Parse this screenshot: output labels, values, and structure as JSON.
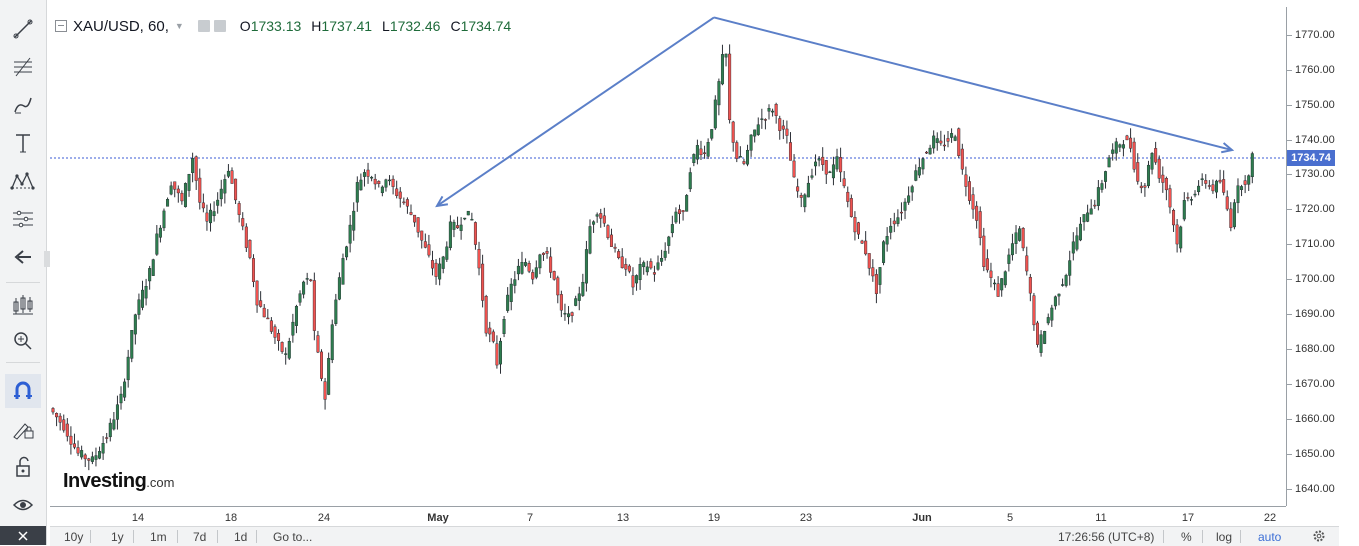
{
  "header": {
    "symbol": "XAU/USD, 60,",
    "open_label": "O",
    "open": "1733.13",
    "high_label": "H",
    "high": "1737.41",
    "low_label": "L",
    "low": "1732.46",
    "close_label": "C",
    "close": "1734.74"
  },
  "toolbar": {
    "items": [
      "trendline-tool",
      "fib-tool",
      "brush-tool",
      "text-tool",
      "pattern-tool",
      "measure-tool",
      "back-arrow",
      "indicators-tool",
      "zoom-tool",
      "magnet-tool",
      "lock-draw-tool",
      "unlock-tool",
      "eye-tool",
      "trash-tool"
    ]
  },
  "chart_data": {
    "type": "candlestick",
    "title": "XAU/USD, 60,",
    "ylim": [
      1635,
      1778
    ],
    "yticks": [
      "1770.00",
      "1760.00",
      "1750.00",
      "1740.00",
      "1730.00",
      "1720.00",
      "1710.00",
      "1700.00",
      "1690.00",
      "1680.00",
      "1670.00",
      "1660.00",
      "1650.00",
      "1640.00"
    ],
    "ytick_values": [
      1770,
      1760,
      1750,
      1740,
      1730,
      1720,
      1710,
      1700,
      1690,
      1680,
      1670,
      1660,
      1650,
      1640
    ],
    "xticks": [
      "14",
      "18",
      "24",
      "May",
      "7",
      "13",
      "19",
      "23",
      "Jun",
      "5",
      "11",
      "17",
      "22"
    ],
    "current_price": "1734.74",
    "current_price_value": 1734.74,
    "price_path": [
      [
        0,
        1663
      ],
      [
        4,
        1658
      ],
      [
        8,
        1650
      ],
      [
        12,
        1648
      ],
      [
        16,
        1655
      ],
      [
        20,
        1666
      ],
      [
        24,
        1690
      ],
      [
        28,
        1702
      ],
      [
        30,
        1712
      ],
      [
        34,
        1728
      ],
      [
        37,
        1722
      ],
      [
        40,
        1735
      ],
      [
        42,
        1722
      ],
      [
        44,
        1716
      ],
      [
        47,
        1723
      ],
      [
        50,
        1732
      ],
      [
        53,
        1718
      ],
      [
        56,
        1706
      ],
      [
        58,
        1694
      ],
      [
        61,
        1688
      ],
      [
        64,
        1681
      ],
      [
        66,
        1678
      ],
      [
        69,
        1692
      ],
      [
        71,
        1699
      ],
      [
        73,
        1700
      ],
      [
        74,
        1684
      ],
      [
        76,
        1672
      ],
      [
        77,
        1666
      ],
      [
        79,
        1688
      ],
      [
        82,
        1706
      ],
      [
        84,
        1715
      ],
      [
        86,
        1727
      ],
      [
        88,
        1731
      ],
      [
        90,
        1730
      ],
      [
        92,
        1726
      ],
      [
        94,
        1729
      ],
      [
        96,
        1726
      ],
      [
        99,
        1722
      ],
      [
        102,
        1717
      ],
      [
        104,
        1711
      ],
      [
        106,
        1706
      ],
      [
        108,
        1701
      ],
      [
        110,
        1706
      ],
      [
        112,
        1715
      ],
      [
        114,
        1715
      ],
      [
        116,
        1719
      ],
      [
        118,
        1717
      ],
      [
        120,
        1703
      ],
      [
        122,
        1686
      ],
      [
        124,
        1681
      ],
      [
        125,
        1676
      ],
      [
        127,
        1690
      ],
      [
        129,
        1698
      ],
      [
        131,
        1703
      ],
      [
        133,
        1705
      ],
      [
        135,
        1701
      ],
      [
        137,
        1708
      ],
      [
        139,
        1706
      ],
      [
        141,
        1700
      ],
      [
        143,
        1690
      ],
      [
        145,
        1689
      ],
      [
        147,
        1693
      ],
      [
        149,
        1700
      ],
      [
        151,
        1715
      ],
      [
        153,
        1720
      ],
      [
        155,
        1716
      ],
      [
        157,
        1710
      ],
      [
        159,
        1705
      ],
      [
        161,
        1704
      ],
      [
        163,
        1698
      ],
      [
        165,
        1703
      ],
      [
        167,
        1704
      ],
      [
        169,
        1702
      ],
      [
        171,
        1706
      ],
      [
        173,
        1712
      ],
      [
        175,
        1720
      ],
      [
        177,
        1718
      ],
      [
        179,
        1732
      ],
      [
        181,
        1738
      ],
      [
        183,
        1736
      ],
      [
        185,
        1744
      ],
      [
        187,
        1756
      ],
      [
        188,
        1763
      ],
      [
        189,
        1764
      ],
      [
        190,
        1745
      ],
      [
        192,
        1735
      ],
      [
        194,
        1733
      ],
      [
        196,
        1740
      ],
      [
        198,
        1745
      ],
      [
        200,
        1747
      ],
      [
        202,
        1749
      ],
      [
        204,
        1744
      ],
      [
        206,
        1740
      ],
      [
        208,
        1728
      ],
      [
        210,
        1722
      ],
      [
        212,
        1728
      ],
      [
        214,
        1734
      ],
      [
        216,
        1733
      ],
      [
        218,
        1730
      ],
      [
        220,
        1734
      ],
      [
        222,
        1726
      ],
      [
        224,
        1718
      ],
      [
        226,
        1712
      ],
      [
        228,
        1708
      ],
      [
        230,
        1700
      ],
      [
        231,
        1697
      ],
      [
        233,
        1710
      ],
      [
        235,
        1716
      ],
      [
        237,
        1718
      ],
      [
        239,
        1722
      ],
      [
        241,
        1728
      ],
      [
        243,
        1733
      ],
      [
        245,
        1737
      ],
      [
        247,
        1740
      ],
      [
        249,
        1738
      ],
      [
        251,
        1740
      ],
      [
        253,
        1742
      ],
      [
        255,
        1731
      ],
      [
        257,
        1724
      ],
      [
        259,
        1718
      ],
      [
        261,
        1705
      ],
      [
        263,
        1700
      ],
      [
        265,
        1696
      ],
      [
        267,
        1703
      ],
      [
        269,
        1710
      ],
      [
        271,
        1714
      ],
      [
        273,
        1702
      ],
      [
        275,
        1688
      ],
      [
        276,
        1680
      ],
      [
        278,
        1686
      ],
      [
        280,
        1692
      ],
      [
        282,
        1697
      ],
      [
        284,
        1702
      ],
      [
        286,
        1710
      ],
      [
        288,
        1715
      ],
      [
        290,
        1720
      ],
      [
        292,
        1722
      ],
      [
        294,
        1728
      ],
      [
        296,
        1735
      ],
      [
        298,
        1738
      ],
      [
        300,
        1740
      ],
      [
        302,
        1738
      ],
      [
        304,
        1728
      ],
      [
        306,
        1727
      ],
      [
        308,
        1737
      ],
      [
        310,
        1730
      ],
      [
        312,
        1726
      ],
      [
        314,
        1716
      ],
      [
        315,
        1710
      ],
      [
        317,
        1722
      ],
      [
        319,
        1724
      ],
      [
        321,
        1727
      ],
      [
        323,
        1728
      ],
      [
        325,
        1726
      ],
      [
        327,
        1728
      ],
      [
        329,
        1720
      ],
      [
        330,
        1716
      ],
      [
        331,
        1723
      ],
      [
        333,
        1728
      ],
      [
        335,
        1729
      ],
      [
        336,
        1734.74
      ]
    ],
    "trendlines": [
      {
        "from": [
          "Apr 30",
          1721
        ],
        "to": [
          "May 19",
          1775
        ]
      },
      {
        "from": [
          "May 19",
          1775
        ],
        "to": [
          "Jun 19",
          1737
        ]
      }
    ]
  },
  "bottom_bar": {
    "ranges": [
      "10y",
      "1y",
      "1m",
      "7d",
      "1d"
    ],
    "goto": "Go to...",
    "time": "17:26:56 (UTC+8)",
    "percent": "%",
    "log": "log",
    "auto": "auto"
  },
  "watermark": {
    "brand": "Investing",
    "suffix": ".com"
  },
  "colors": {
    "up": "#26a69a",
    "down": "#ef5350",
    "body": "#2e7d4f",
    "trend": "#5b7fc8",
    "price_line": "#3b5bd6",
    "price_tag": "#4a6fcf"
  }
}
